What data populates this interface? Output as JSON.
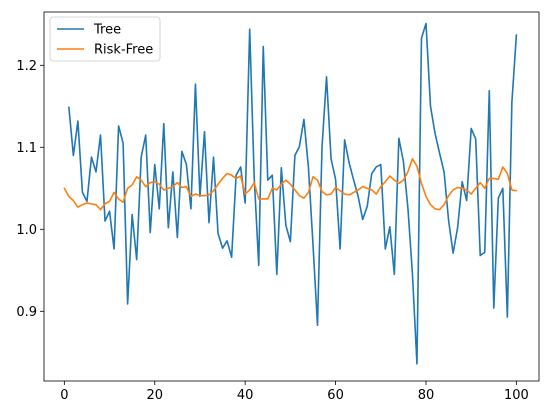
{
  "chart_data": {
    "type": "line",
    "title": "",
    "xlabel": "",
    "ylabel": "",
    "xlim": [
      -4.5,
      105
    ],
    "ylim": [
      0.815,
      1.265
    ],
    "xticks": [
      0,
      20,
      40,
      60,
      80,
      100
    ],
    "yticks": [
      0.9,
      1.0,
      1.1,
      1.2
    ],
    "ytick_labels": [
      "0.9",
      "1.0",
      "1.1",
      "1.2"
    ],
    "grid": false,
    "legend_position": "top-left",
    "series": [
      {
        "name": "Tree",
        "color": "#1f77b4",
        "x": [
          1,
          2,
          3,
          4,
          5,
          6,
          7,
          8,
          9,
          10,
          11,
          12,
          13,
          14,
          15,
          16,
          17,
          18,
          19,
          20,
          21,
          22,
          23,
          24,
          25,
          26,
          27,
          28,
          29,
          30,
          31,
          32,
          33,
          34,
          35,
          36,
          37,
          38,
          39,
          40,
          41,
          42,
          43,
          44,
          45,
          46,
          47,
          48,
          49,
          50,
          51,
          52,
          53,
          54,
          55,
          56,
          57,
          58,
          59,
          60,
          61,
          62,
          63,
          64,
          65,
          66,
          67,
          68,
          69,
          70,
          71,
          72,
          73,
          74,
          75,
          76,
          77,
          78,
          79,
          80,
          81,
          82,
          83,
          84,
          85,
          86,
          87,
          88,
          89,
          90,
          91,
          92,
          93,
          94,
          95,
          96,
          97,
          98,
          99,
          100
        ],
        "y": [
          1.149,
          1.09,
          1.132,
          1.045,
          1.034,
          1.088,
          1.07,
          1.115,
          1.01,
          1.022,
          0.976,
          1.126,
          1.105,
          0.909,
          1.018,
          0.963,
          1.088,
          1.115,
          0.996,
          1.079,
          1.025,
          1.129,
          1.002,
          1.07,
          0.99,
          1.095,
          1.079,
          1.025,
          1.177,
          1.04,
          1.119,
          1.008,
          1.088,
          0.995,
          0.977,
          0.986,
          0.966,
          1.066,
          1.076,
          1.032,
          1.244,
          1.063,
          0.956,
          1.223,
          1.06,
          1.066,
          0.945,
          1.075,
          1.005,
          0.985,
          1.09,
          1.101,
          1.134,
          1.075,
          0.982,
          0.883,
          1.1,
          1.186,
          1.086,
          1.061,
          0.976,
          1.109,
          1.081,
          1.06,
          1.04,
          1.012,
          1.028,
          1.068,
          1.076,
          1.079,
          0.976,
          1.003,
          0.945,
          1.111,
          1.083,
          1.026,
          0.946,
          0.836,
          1.233,
          1.251,
          1.15,
          1.117,
          1.093,
          1.07,
          1.011,
          0.971,
          1.002,
          1.058,
          1.035,
          1.123,
          1.11,
          0.968,
          0.972,
          1.169,
          0.904,
          1.038,
          1.05,
          0.893,
          1.155,
          1.237
        ]
      },
      {
        "name": "Risk-Free",
        "color": "#ff7f0e",
        "x": [
          0,
          1,
          2,
          3,
          4,
          5,
          6,
          7,
          8,
          9,
          10,
          11,
          12,
          13,
          14,
          15,
          16,
          17,
          18,
          19,
          20,
          21,
          22,
          23,
          24,
          25,
          26,
          27,
          28,
          29,
          30,
          31,
          32,
          33,
          34,
          35,
          36,
          37,
          38,
          39,
          40,
          41,
          42,
          43,
          44,
          45,
          46,
          47,
          48,
          49,
          50,
          51,
          52,
          53,
          54,
          55,
          56,
          57,
          58,
          59,
          60,
          61,
          62,
          63,
          64,
          65,
          66,
          67,
          68,
          69,
          70,
          71,
          72,
          73,
          74,
          75,
          76,
          77,
          78,
          79,
          80,
          81,
          82,
          83,
          84,
          85,
          86,
          87,
          88,
          89,
          90,
          91,
          92,
          93,
          94,
          95,
          96,
          97,
          98,
          99,
          100
        ],
        "y": [
          1.05,
          1.04,
          1.035,
          1.027,
          1.03,
          1.032,
          1.031,
          1.03,
          1.024,
          1.031,
          1.034,
          1.045,
          1.037,
          1.033,
          1.05,
          1.054,
          1.064,
          1.06,
          1.052,
          1.057,
          1.058,
          1.055,
          1.048,
          1.05,
          1.052,
          1.057,
          1.051,
          1.052,
          1.04,
          1.043,
          1.041,
          1.041,
          1.042,
          1.047,
          1.055,
          1.062,
          1.068,
          1.066,
          1.062,
          1.065,
          1.043,
          1.048,
          1.057,
          1.037,
          1.037,
          1.037,
          1.05,
          1.048,
          1.055,
          1.06,
          1.055,
          1.048,
          1.041,
          1.038,
          1.045,
          1.064,
          1.06,
          1.046,
          1.042,
          1.043,
          1.051,
          1.047,
          1.043,
          1.042,
          1.045,
          1.048,
          1.052,
          1.05,
          1.048,
          1.043,
          1.052,
          1.058,
          1.065,
          1.06,
          1.056,
          1.06,
          1.07,
          1.086,
          1.077,
          1.056,
          1.04,
          1.03,
          1.025,
          1.024,
          1.03,
          1.041,
          1.048,
          1.051,
          1.05,
          1.048,
          1.043,
          1.05,
          1.057,
          1.05,
          1.062,
          1.062,
          1.061,
          1.076,
          1.068,
          1.048,
          1.047
        ]
      }
    ]
  }
}
